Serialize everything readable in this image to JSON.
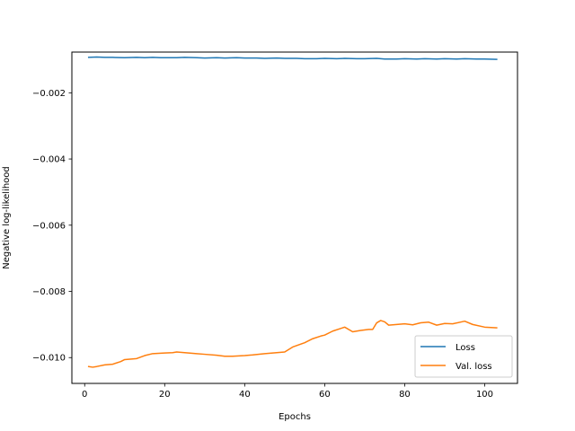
{
  "chart_data": {
    "type": "line",
    "title": "",
    "xlabel": "Epochs",
    "ylabel": "Negative log-likelihood",
    "xlim": [
      -3.2,
      108.2
    ],
    "ylim": [
      -0.01078,
      -0.00077
    ],
    "xticks": [
      0,
      20,
      40,
      60,
      80,
      100
    ],
    "xtick_labels": [
      "0",
      "20",
      "40",
      "60",
      "80",
      "100"
    ],
    "yticks": [
      -0.002,
      -0.004,
      -0.006,
      -0.008,
      -0.01
    ],
    "ytick_labels": [
      "−0.002",
      "−0.004",
      "−0.006",
      "−0.008",
      "−0.010"
    ],
    "grid": false,
    "legend_position": "lower-right",
    "series": [
      {
        "name": "Loss",
        "color": "#1f77b4",
        "x": [
          1,
          3,
          5,
          7,
          10,
          13,
          15,
          17,
          19,
          21,
          23,
          25,
          28,
          30,
          33,
          35,
          38,
          40,
          43,
          45,
          48,
          50,
          53,
          55,
          58,
          60,
          63,
          65,
          68,
          70,
          73,
          75,
          78,
          80,
          83,
          85,
          88,
          90,
          93,
          95,
          98,
          100,
          103
        ],
        "values": [
          -0.00093,
          -0.00092,
          -0.00093,
          -0.00093,
          -0.00094,
          -0.00093,
          -0.00094,
          -0.00093,
          -0.00094,
          -0.00094,
          -0.00094,
          -0.00093,
          -0.00094,
          -0.00095,
          -0.00094,
          -0.00095,
          -0.00094,
          -0.00095,
          -0.00095,
          -0.00096,
          -0.00095,
          -0.00096,
          -0.00096,
          -0.00097,
          -0.00097,
          -0.00096,
          -0.00097,
          -0.00096,
          -0.00097,
          -0.00097,
          -0.00096,
          -0.00098,
          -0.00098,
          -0.00097,
          -0.00098,
          -0.00097,
          -0.00098,
          -0.00097,
          -0.00098,
          -0.00097,
          -0.00098,
          -0.00098,
          -0.00099
        ]
      },
      {
        "name": "Val. loss",
        "color": "#ff7f0e",
        "x": [
          1,
          2,
          3,
          5,
          7,
          9,
          10,
          13,
          15,
          17,
          20,
          22,
          23,
          25,
          28,
          30,
          33,
          35,
          37,
          40,
          42,
          45,
          48,
          50,
          52,
          55,
          57,
          59,
          60,
          62,
          64,
          65,
          67,
          69,
          71,
          72,
          73,
          74,
          75,
          76,
          78,
          80,
          82,
          84,
          86,
          88,
          90,
          92,
          95,
          97,
          100,
          103
        ],
        "values": [
          -0.01027,
          -0.01029,
          -0.01027,
          -0.01022,
          -0.0102,
          -0.01012,
          -0.01006,
          -0.01003,
          -0.00994,
          -0.00988,
          -0.00986,
          -0.00985,
          -0.00983,
          -0.00985,
          -0.00988,
          -0.0099,
          -0.00993,
          -0.00996,
          -0.00996,
          -0.00994,
          -0.00992,
          -0.00988,
          -0.00985,
          -0.00983,
          -0.00968,
          -0.00955,
          -0.00943,
          -0.00935,
          -0.00932,
          -0.0092,
          -0.00912,
          -0.00908,
          -0.00922,
          -0.00918,
          -0.00915,
          -0.00915,
          -0.00895,
          -0.00888,
          -0.00892,
          -0.00902,
          -0.009,
          -0.00898,
          -0.00901,
          -0.00895,
          -0.00893,
          -0.00902,
          -0.00897,
          -0.00898,
          -0.0089,
          -0.009,
          -0.00908,
          -0.0091
        ]
      }
    ]
  }
}
